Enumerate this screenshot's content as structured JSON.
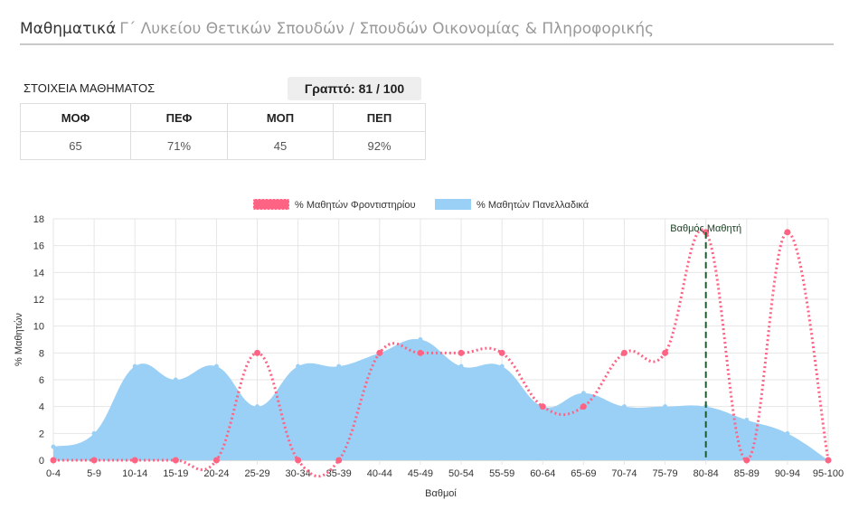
{
  "header": {
    "subject": "Μαθηματικά",
    "course": "Γ΄ Λυκείου Θετικών Σπουδών / Σπουδών Οικονομίας & Πληροφορικής"
  },
  "info": {
    "label": "ΣΤΟΙΧΕΙΑ ΜΑΘΗΜΑΤΟΣ",
    "grade": "Γραπτό: 81 / 100"
  },
  "stats": {
    "headers": [
      "ΜΟΦ",
      "ΠΕΦ",
      "ΜΟΠ",
      "ΠΕΠ"
    ],
    "values": [
      "65",
      "71%",
      "45",
      "92%"
    ]
  },
  "colors": {
    "tutoring": "#ff6384",
    "national": "#9ad0f5",
    "marker": "#1e5c2e"
  },
  "chart_data": {
    "type": "line",
    "xlabel": "Βαθμοί",
    "ylabel": "% Μαθητών",
    "ylim": [
      0,
      18
    ],
    "yticks": [
      0,
      2,
      4,
      6,
      8,
      10,
      12,
      14,
      16,
      18
    ],
    "categories": [
      "0-4",
      "5-9",
      "10-14",
      "15-19",
      "20-24",
      "25-29",
      "30-34",
      "35-39",
      "40-44",
      "45-49",
      "50-54",
      "55-59",
      "60-64",
      "65-69",
      "70-74",
      "75-79",
      "80-84",
      "85-89",
      "90-94",
      "95-100"
    ],
    "series": [
      {
        "name": "% Μαθητών Φροντιστηρίου",
        "style": "dotted-line",
        "values": [
          0,
          0,
          0,
          0,
          0,
          8,
          0,
          0,
          8,
          8,
          8,
          8,
          4,
          4,
          8,
          8,
          17,
          0,
          17,
          0
        ]
      },
      {
        "name": "% Μαθητών Πανελλαδικά",
        "style": "filled-area",
        "values": [
          1,
          2,
          7,
          6,
          7,
          4,
          7,
          7,
          8,
          9,
          7,
          7,
          4,
          5,
          4,
          4,
          4,
          3,
          2,
          0
        ]
      }
    ],
    "legend_position": "top",
    "annotation": {
      "label": "Βαθμός Μαθητή",
      "category": "80-84"
    }
  }
}
